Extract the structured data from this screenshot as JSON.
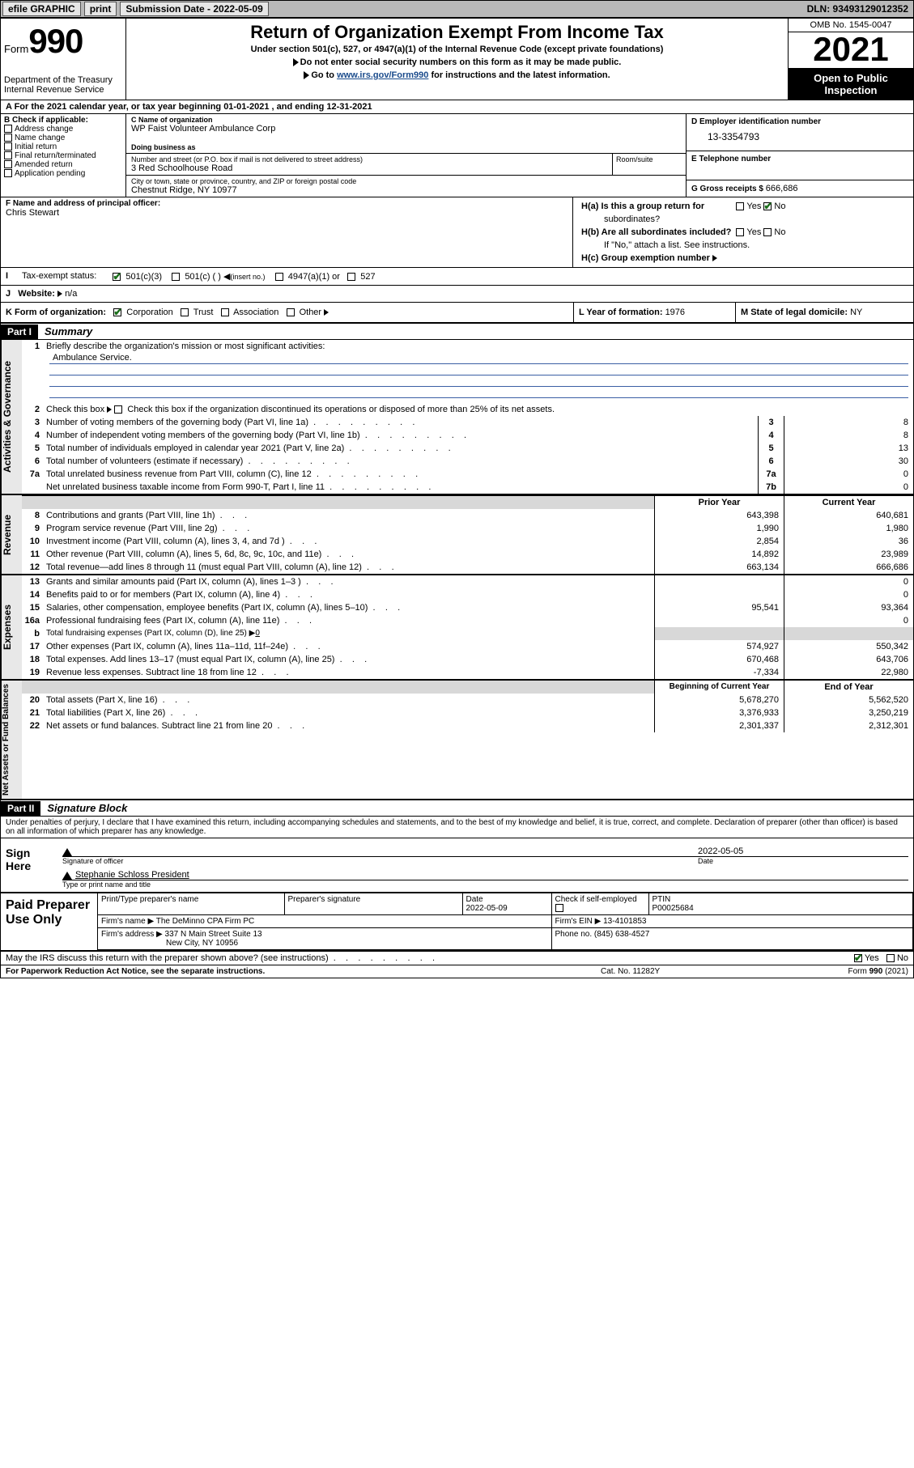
{
  "topbar": {
    "efile": "efile GRAPHIC",
    "print": "print",
    "sub_label": "Submission Date - 2022-05-09",
    "dln": "DLN: 93493129012352"
  },
  "header": {
    "form_word": "Form",
    "form_num": "990",
    "dept": "Department of the Treasury",
    "irs": "Internal Revenue Service",
    "title": "Return of Organization Exempt From Income Tax",
    "sub": "Under section 501(c), 527, or 4947(a)(1) of the Internal Revenue Code (except private foundations)",
    "line1": "Do not enter social security numbers on this form as it may be made public.",
    "line2a": "Go to ",
    "line2_link": "www.irs.gov/Form990",
    "line2b": " for instructions and the latest information.",
    "omb": "OMB No. 1545-0047",
    "year": "2021",
    "open1": "Open to Public",
    "open2": "Inspection"
  },
  "row_a": "A For the 2021 calendar year, or tax year beginning 01-01-2021   , and ending 12-31-2021",
  "col_b": {
    "lbl": "B Check if applicable:",
    "o1": "Address change",
    "o2": "Name change",
    "o3": "Initial return",
    "o4": "Final return/terminated",
    "o5": "Amended return",
    "o6": "Application pending"
  },
  "col_c": {
    "name_h": "C Name of organization",
    "name": "WP Faist Volunteer Ambulance Corp",
    "dba_h": "Doing business as",
    "dba": "",
    "street_h": "Number and street (or P.O. box if mail is not delivered to street address)",
    "street": "3 Red Schoolhouse Road",
    "room_h": "Room/suite",
    "city_h": "City or town, state or province, country, and ZIP or foreign postal code",
    "city": "Chestnut Ridge, NY  10977"
  },
  "col_d": {
    "ein_h": "D Employer identification number",
    "ein": "13-3354793",
    "phone_h": "E Telephone number",
    "phone": "",
    "gross_h": "G Gross receipts $ ",
    "gross": "666,686"
  },
  "row_f": {
    "h": "F Name and address of principal officer:",
    "name": "Chris Stewart"
  },
  "row_h": {
    "ha": "H(a)  Is this a group return for",
    "ha2": "subordinates?",
    "hb": "H(b)  Are all subordinates included?",
    "hb2": "If \"No,\" attach a list. See instructions.",
    "hc": "H(c)  Group exemption number",
    "yes": "Yes",
    "no": "No"
  },
  "tax": {
    "lbl": "Tax-exempt status:",
    "o1": "501(c)(3)",
    "o2": "501(c) (   )",
    "o2b": "(insert no.)",
    "o3": "4947(a)(1) or",
    "o4": "527"
  },
  "web": {
    "lbl": "Website:",
    "val": "n/a"
  },
  "row_k": {
    "lbl": "K Form of organization:",
    "o1": "Corporation",
    "o2": "Trust",
    "o3": "Association",
    "o4": "Other",
    "l_lbl": "L Year of formation: ",
    "l_val": "1976",
    "m_lbl": "M State of legal domicile: ",
    "m_val": "NY"
  },
  "part1": {
    "hdr": "Part I",
    "title": "Summary"
  },
  "sections": {
    "gov": {
      "tab": "Activities & Governance",
      "l1": "Briefly describe the organization's mission or most significant activities:",
      "mission": "Ambulance Service.",
      "l2": "Check this box        if the organization discontinued its operations or disposed of more than 25% of its net assets.",
      "rows": [
        {
          "n": "3",
          "t": "Number of voting members of the governing body (Part VI, line 1a)",
          "box": "3",
          "v": "8"
        },
        {
          "n": "4",
          "t": "Number of independent voting members of the governing body (Part VI, line 1b)",
          "box": "4",
          "v": "8"
        },
        {
          "n": "5",
          "t": "Total number of individuals employed in calendar year 2021 (Part V, line 2a)",
          "box": "5",
          "v": "13"
        },
        {
          "n": "6",
          "t": "Total number of volunteers (estimate if necessary)",
          "box": "6",
          "v": "30"
        },
        {
          "n": "7a",
          "t": "Total unrelated business revenue from Part VIII, column (C), line 12",
          "box": "7a",
          "v": "0"
        },
        {
          "n": "",
          "t": "Net unrelated business taxable income from Form 990-T, Part I, line 11",
          "box": "7b",
          "v": "0"
        }
      ]
    },
    "rev": {
      "tab": "Revenue",
      "hdr_prior": "Prior Year",
      "hdr_curr": "Current Year",
      "rows": [
        {
          "n": "8",
          "t": "Contributions and grants (Part VIII, line 1h)",
          "p": "643,398",
          "c": "640,681"
        },
        {
          "n": "9",
          "t": "Program service revenue (Part VIII, line 2g)",
          "p": "1,990",
          "c": "1,980"
        },
        {
          "n": "10",
          "t": "Investment income (Part VIII, column (A), lines 3, 4, and 7d )",
          "p": "2,854",
          "c": "36"
        },
        {
          "n": "11",
          "t": "Other revenue (Part VIII, column (A), lines 5, 6d, 8c, 9c, 10c, and 11e)",
          "p": "14,892",
          "c": "23,989"
        },
        {
          "n": "12",
          "t": "Total revenue—add lines 8 through 11 (must equal Part VIII, column (A), line 12)",
          "p": "663,134",
          "c": "666,686"
        }
      ]
    },
    "exp": {
      "tab": "Expenses",
      "rows": [
        {
          "n": "13",
          "t": "Grants and similar amounts paid (Part IX, column (A), lines 1–3 )",
          "p": "",
          "c": "0"
        },
        {
          "n": "14",
          "t": "Benefits paid to or for members (Part IX, column (A), line 4)",
          "p": "",
          "c": "0"
        },
        {
          "n": "15",
          "t": "Salaries, other compensation, employee benefits (Part IX, column (A), lines 5–10)",
          "p": "95,541",
          "c": "93,364"
        },
        {
          "n": "16a",
          "t": "Professional fundraising fees (Part IX, column (A), line 11e)",
          "p": "",
          "c": "0"
        },
        {
          "n": "b",
          "t": "Total fundraising expenses (Part IX, column (D), line 25) ▶",
          "tval": "0",
          "shade": true
        },
        {
          "n": "17",
          "t": "Other expenses (Part IX, column (A), lines 11a–11d, 11f–24e)",
          "p": "574,927",
          "c": "550,342"
        },
        {
          "n": "18",
          "t": "Total expenses. Add lines 13–17 (must equal Part IX, column (A), line 25)",
          "p": "670,468",
          "c": "643,706"
        },
        {
          "n": "19",
          "t": "Revenue less expenses. Subtract line 18 from line 12",
          "p": "-7,334",
          "c": "22,980"
        }
      ]
    },
    "net": {
      "tab": "Net Assets or Fund Balances",
      "hdr_prior": "Beginning of Current Year",
      "hdr_curr": "End of Year",
      "rows": [
        {
          "n": "20",
          "t": "Total assets (Part X, line 16)",
          "p": "5,678,270",
          "c": "5,562,520"
        },
        {
          "n": "21",
          "t": "Total liabilities (Part X, line 26)",
          "p": "3,376,933",
          "c": "3,250,219"
        },
        {
          "n": "22",
          "t": "Net assets or fund balances. Subtract line 21 from line 20",
          "p": "2,301,337",
          "c": "2,312,301"
        }
      ]
    }
  },
  "part2": {
    "hdr": "Part II",
    "title": "Signature Block"
  },
  "sig": {
    "decl": "Under penalties of perjury, I declare that I have examined this return, including accompanying schedules and statements, and to the best of my knowledge and belief, it is true, correct, and complete. Declaration of preparer (other than officer) is based on all information of which preparer has any knowledge.",
    "sign_here": "Sign Here",
    "sig_officer": "Signature of officer",
    "date_lbl": "Date",
    "date": "2022-05-05",
    "name": "Stephanie Schloss  President",
    "name_lbl": "Type or print name and title"
  },
  "paid": {
    "lbl": "Paid Preparer Use Only",
    "h_name": "Print/Type preparer's name",
    "h_sig": "Preparer's signature",
    "h_date": "Date",
    "date": "2022-05-09",
    "h_check": "Check         if self-employed",
    "h_ptin": "PTIN",
    "ptin": "P00025684",
    "firm_name_h": "Firm's name   ▶ ",
    "firm_name": "The DeMinno CPA Firm PC",
    "firm_ein_h": "Firm's EIN ▶ ",
    "firm_ein": "13-4101853",
    "firm_addr_h": "Firm's address ▶ ",
    "firm_addr1": "337 N Main Street Suite 13",
    "firm_addr2": "New City, NY  10956",
    "phone_h": "Phone no. ",
    "phone": "(845) 638-4527"
  },
  "may": {
    "txt": "May the IRS discuss this return with the preparer shown above? (see instructions)",
    "yes": "Yes",
    "no": "No"
  },
  "footer": {
    "l": "For Paperwork Reduction Act Notice, see the separate instructions.",
    "c": "Cat. No. 11282Y",
    "r": "Form 990 (2021)"
  }
}
